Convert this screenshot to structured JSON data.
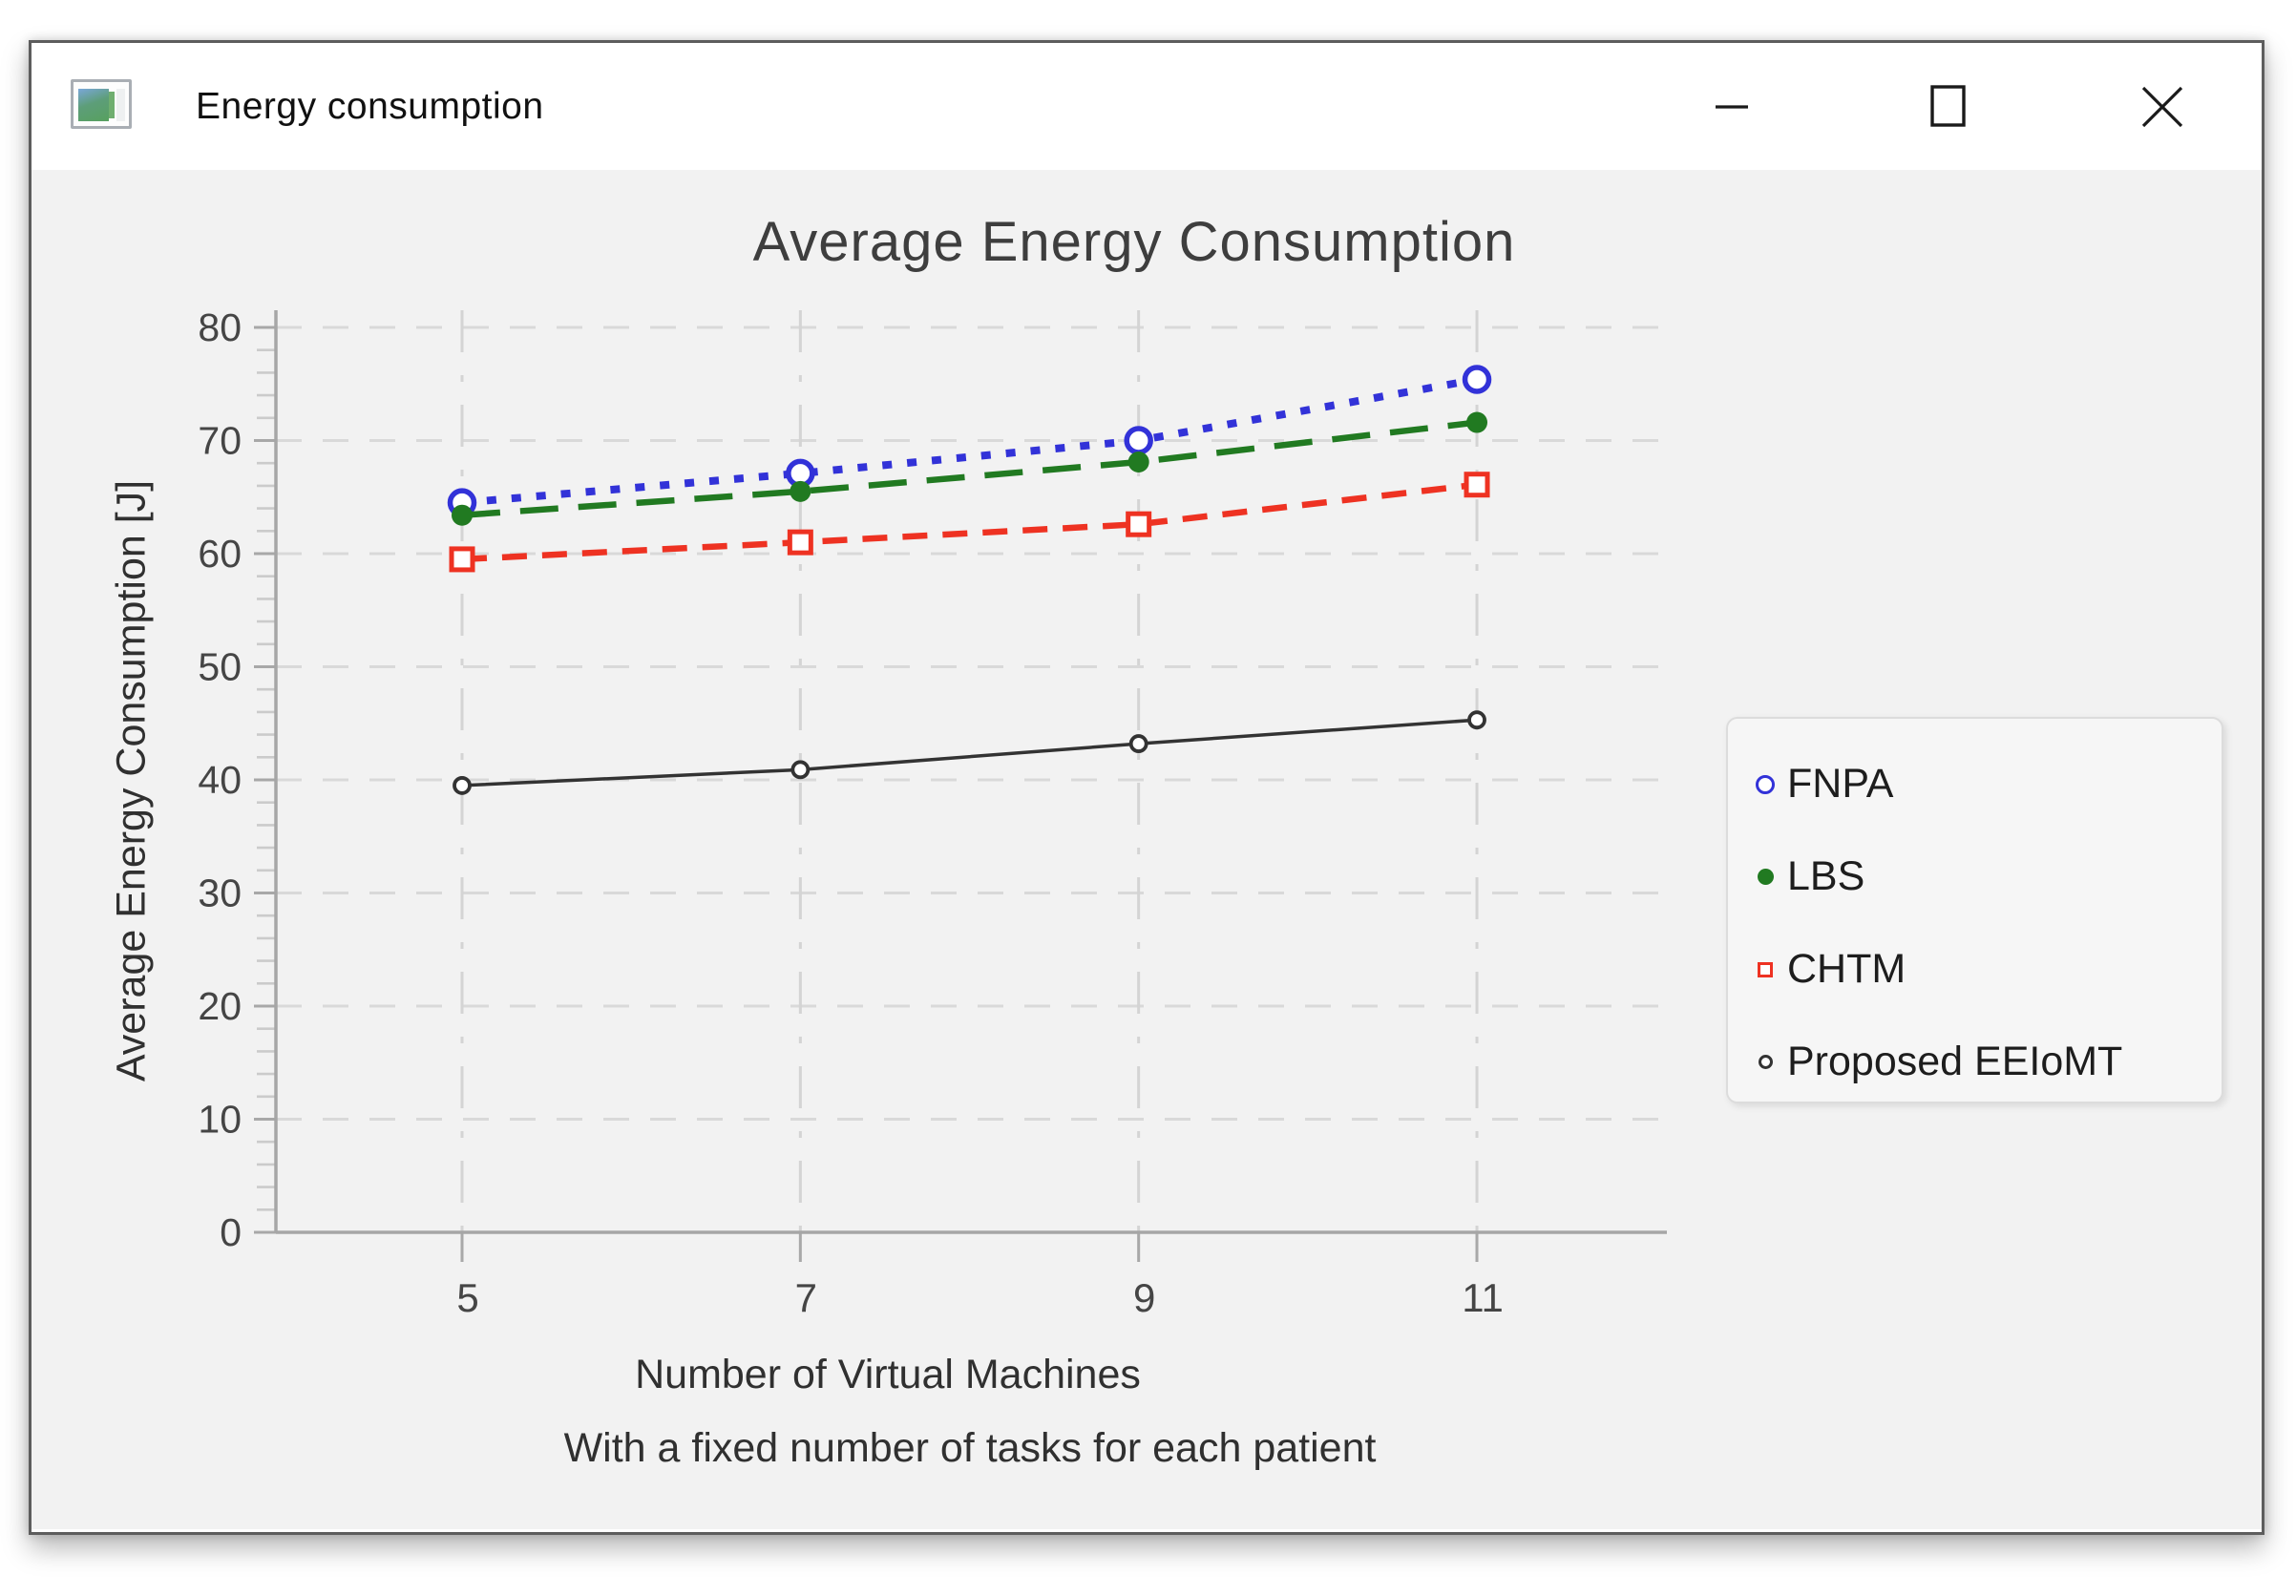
{
  "window": {
    "title": "Energy consumption",
    "icon": "mini-chart-window-icon",
    "controls": {
      "minimize": "minimize-icon",
      "maximize": "maximize-icon",
      "close": "close-icon"
    }
  },
  "chart_data": {
    "type": "line",
    "title": "Average Energy Consumption",
    "xlabel": "Number of Virtual Machines",
    "xlabel_subtitle": "With a fixed number of tasks for each patient",
    "ylabel": "Average Energy Consumption [J]",
    "x": [
      5,
      7,
      9,
      11
    ],
    "x_tick_labels": [
      "5",
      "7",
      "9",
      "11"
    ],
    "y_ticks": [
      0,
      10,
      20,
      30,
      40,
      50,
      60,
      70,
      80
    ],
    "y_minor_tick_step": 2,
    "ylim": [
      0,
      80
    ],
    "xlim": [
      3.9,
      12.1
    ],
    "grid": true,
    "legend_position": "right",
    "series": [
      {
        "name": "FNPA",
        "color": "#3232d8",
        "line_style": "dotted",
        "marker": "open-circle",
        "values": [
          64.5,
          67.1,
          70.0,
          75.4
        ]
      },
      {
        "name": "LBS",
        "color": "#217a21",
        "line_style": "long-dash",
        "marker": "filled-circle",
        "values": [
          63.4,
          65.5,
          68.1,
          71.6
        ]
      },
      {
        "name": "CHTM",
        "color": "#ee3222",
        "line_style": "dashed",
        "marker": "open-square",
        "values": [
          59.5,
          61.0,
          62.6,
          66.1
        ]
      },
      {
        "name": "Proposed EEIoMT",
        "color": "#333333",
        "line_style": "solid",
        "marker": "small-open-circle",
        "values": [
          39.5,
          40.9,
          43.2,
          45.3
        ]
      }
    ],
    "colors": {
      "plot_background": "#f2f2f2",
      "h_gridline": "#d9d9d9",
      "v_gridline": "#d4d4d4",
      "axis": "#a6a6a6",
      "tick_label": "#454545"
    }
  }
}
